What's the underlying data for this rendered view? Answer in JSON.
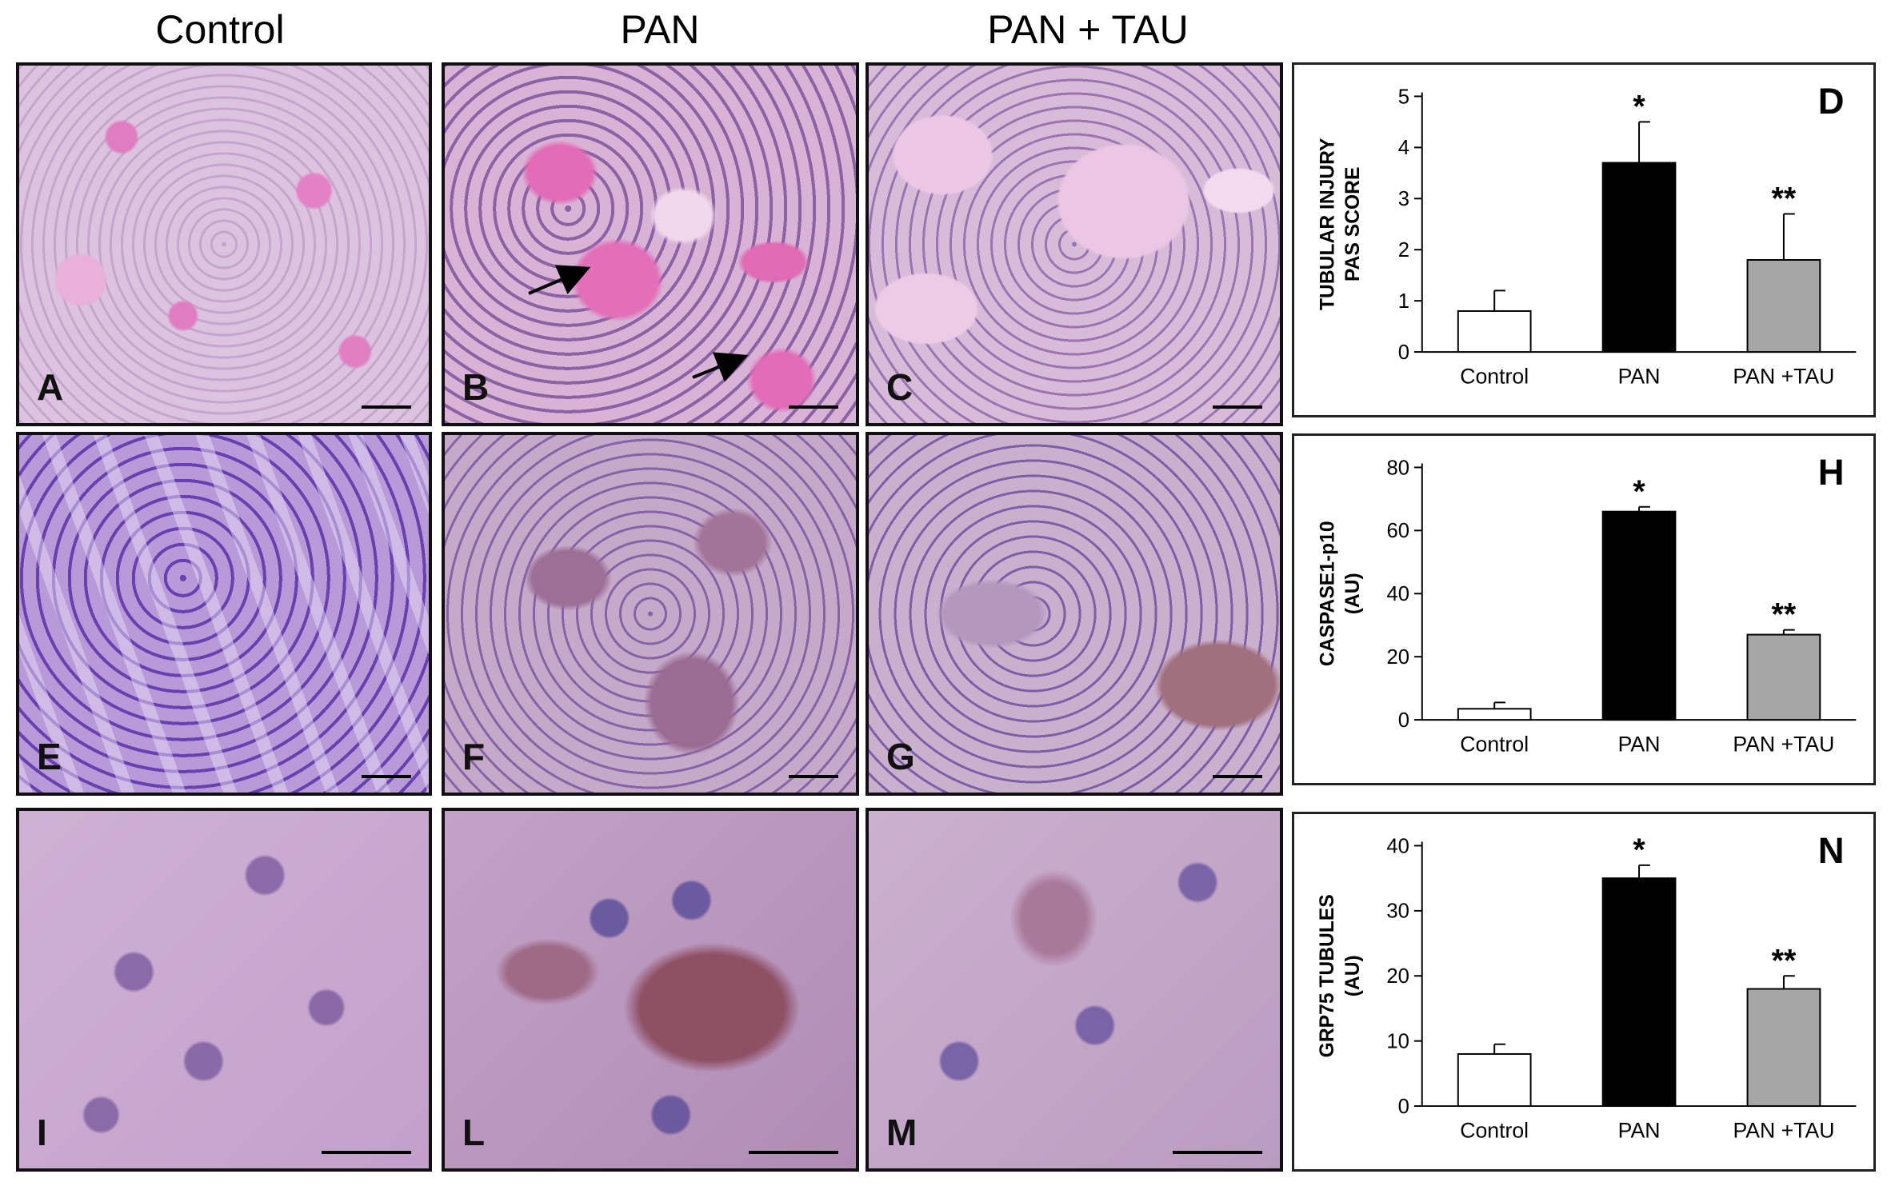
{
  "columns": [
    "Control",
    "PAN",
    "PAN + TAU"
  ],
  "panels": {
    "A": "A",
    "B": "B",
    "C": "C",
    "E": "E",
    "F": "F",
    "G": "G",
    "I": "I",
    "L": "L",
    "M": "M"
  },
  "chart_data": [
    {
      "type": "bar",
      "panel_label": "D",
      "ylabel": [
        "TUBULAR INJURY",
        "PAS SCORE"
      ],
      "categories": [
        "Control",
        "PAN",
        "PAN +TAU"
      ],
      "values": [
        0.8,
        3.7,
        1.8
      ],
      "errors": [
        0.4,
        0.8,
        0.9
      ],
      "significance": [
        "",
        "*",
        "**"
      ],
      "ylim": [
        0,
        5
      ],
      "yticks": [
        0,
        1,
        2,
        3,
        4,
        5
      ],
      "colors": [
        "#ffffff",
        "#000000",
        "#a6a6a6"
      ]
    },
    {
      "type": "bar",
      "panel_label": "H",
      "ylabel": [
        "CASPASE1-p10",
        "(AU)"
      ],
      "categories": [
        "Control",
        "PAN",
        "PAN +TAU"
      ],
      "values": [
        3.5,
        66,
        27
      ],
      "errors": [
        2,
        1.5,
        1.5
      ],
      "significance": [
        "",
        "*",
        "**"
      ],
      "ylim": [
        0,
        80
      ],
      "yticks": [
        0,
        20,
        40,
        60,
        80
      ],
      "colors": [
        "#ffffff",
        "#000000",
        "#a6a6a6"
      ]
    },
    {
      "type": "bar",
      "panel_label": "N",
      "ylabel": [
        "GRP75 TUBULES",
        "(AU)"
      ],
      "categories": [
        "Control",
        "PAN",
        "PAN +TAU"
      ],
      "values": [
        8,
        35,
        18
      ],
      "errors": [
        1.5,
        2,
        2
      ],
      "significance": [
        "",
        "*",
        "**"
      ],
      "ylim": [
        0,
        40
      ],
      "yticks": [
        0,
        10,
        20,
        30,
        40
      ],
      "colors": [
        "#ffffff",
        "#000000",
        "#a6a6a6"
      ]
    }
  ]
}
